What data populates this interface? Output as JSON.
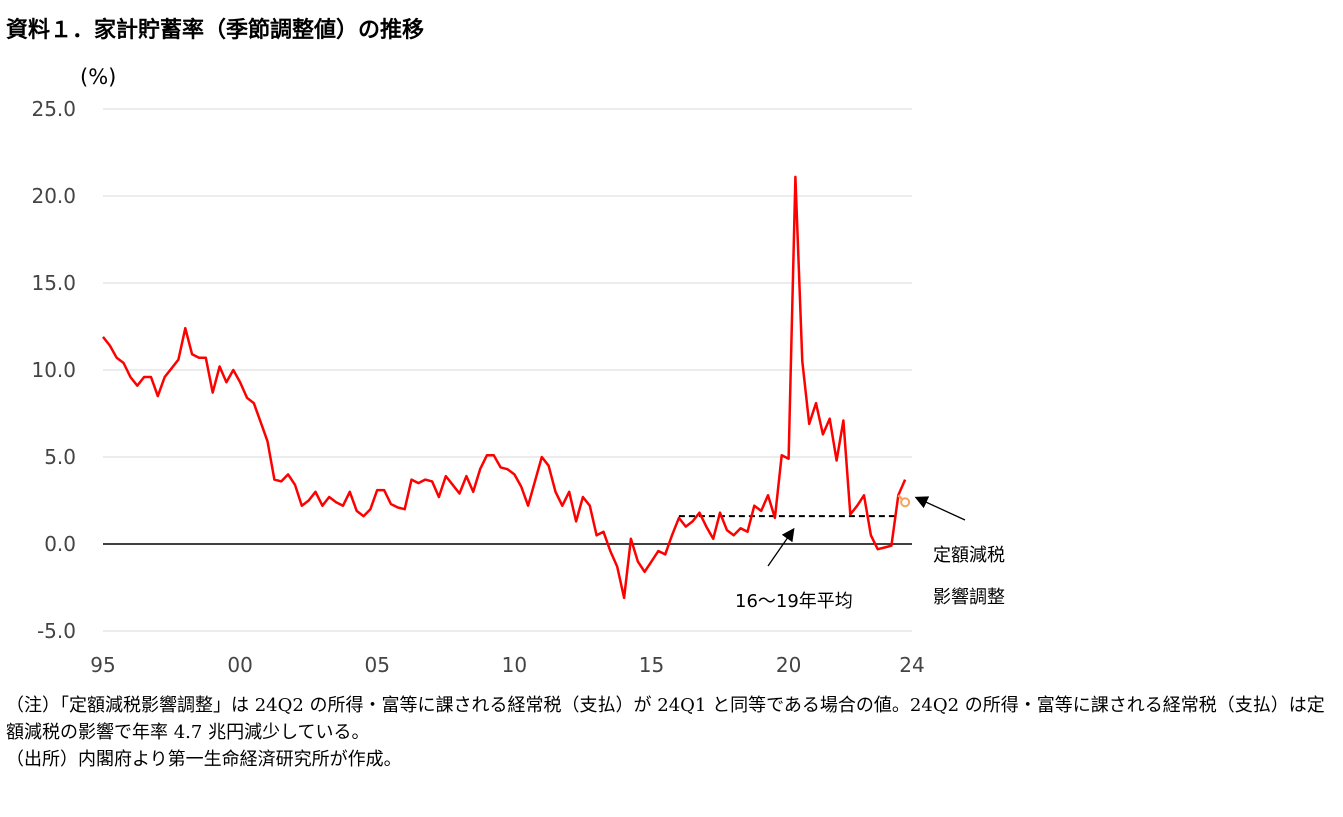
{
  "chart_data": {
    "type": "line",
    "title": "資料１．家計貯蓄率（季節調整値）の推移",
    "unit_label": "(%)",
    "ylim": [
      -5.0,
      25.0
    ],
    "yticks": [
      "25.0",
      "20.0",
      "15.0",
      "10.0",
      "5.0",
      "0.0",
      "-5.0"
    ],
    "yticks_values": [
      25,
      20,
      15,
      10,
      5,
      0,
      -5
    ],
    "xticks": [
      "95",
      "00",
      "05",
      "10",
      "15",
      "20",
      "24"
    ],
    "xticks_values": [
      1995,
      2000,
      2005,
      2010,
      2015,
      2020,
      2024.5
    ],
    "grid": true,
    "series": [
      {
        "color": "#ff0000",
        "points": [
          [
            1995.0,
            11.9
          ],
          [
            1995.25,
            11.4
          ],
          [
            1995.5,
            10.7
          ],
          [
            1995.75,
            10.4
          ],
          [
            1996.0,
            9.6
          ],
          [
            1996.25,
            9.1
          ],
          [
            1996.5,
            9.6
          ],
          [
            1996.75,
            9.6
          ],
          [
            1997.0,
            8.5
          ],
          [
            1997.25,
            9.6
          ],
          [
            1997.5,
            10.1
          ],
          [
            1997.75,
            10.6
          ],
          [
            1998.0,
            12.4
          ],
          [
            1998.25,
            10.9
          ],
          [
            1998.5,
            10.7
          ],
          [
            1998.75,
            10.7
          ],
          [
            1999.0,
            8.7
          ],
          [
            1999.25,
            10.2
          ],
          [
            1999.5,
            9.3
          ],
          [
            1999.75,
            10.0
          ],
          [
            2000.0,
            9.3
          ],
          [
            2000.25,
            8.4
          ],
          [
            2000.5,
            8.1
          ],
          [
            2000.75,
            7.0
          ],
          [
            2001.0,
            5.9
          ],
          [
            2001.25,
            3.7
          ],
          [
            2001.5,
            3.6
          ],
          [
            2001.75,
            4.0
          ],
          [
            2002.0,
            3.4
          ],
          [
            2002.25,
            2.2
          ],
          [
            2002.5,
            2.5
          ],
          [
            2002.75,
            3.0
          ],
          [
            2003.0,
            2.2
          ],
          [
            2003.25,
            2.7
          ],
          [
            2003.5,
            2.4
          ],
          [
            2003.75,
            2.2
          ],
          [
            2004.0,
            3.0
          ],
          [
            2004.25,
            1.9
          ],
          [
            2004.5,
            1.6
          ],
          [
            2004.75,
            2.0
          ],
          [
            2005.0,
            3.1
          ],
          [
            2005.25,
            3.1
          ],
          [
            2005.5,
            2.3
          ],
          [
            2005.75,
            2.1
          ],
          [
            2006.0,
            2.0
          ],
          [
            2006.25,
            3.7
          ],
          [
            2006.5,
            3.5
          ],
          [
            2006.75,
            3.7
          ],
          [
            2007.0,
            3.6
          ],
          [
            2007.25,
            2.7
          ],
          [
            2007.5,
            3.9
          ],
          [
            2007.75,
            3.4
          ],
          [
            2008.0,
            2.9
          ],
          [
            2008.25,
            3.9
          ],
          [
            2008.5,
            3.0
          ],
          [
            2008.75,
            4.3
          ],
          [
            2009.0,
            5.1
          ],
          [
            2009.25,
            5.1
          ],
          [
            2009.5,
            4.4
          ],
          [
            2009.75,
            4.3
          ],
          [
            2010.0,
            4.0
          ],
          [
            2010.25,
            3.3
          ],
          [
            2010.5,
            2.2
          ],
          [
            2010.75,
            3.6
          ],
          [
            2011.0,
            5.0
          ],
          [
            2011.25,
            4.5
          ],
          [
            2011.5,
            3.0
          ],
          [
            2011.75,
            2.2
          ],
          [
            2012.0,
            3.0
          ],
          [
            2012.25,
            1.3
          ],
          [
            2012.5,
            2.7
          ],
          [
            2012.75,
            2.2
          ],
          [
            2013.0,
            0.5
          ],
          [
            2013.25,
            0.7
          ],
          [
            2013.5,
            -0.4
          ],
          [
            2013.75,
            -1.3
          ],
          [
            2014.0,
            -3.1
          ],
          [
            2014.25,
            0.3
          ],
          [
            2014.5,
            -1.0
          ],
          [
            2014.75,
            -1.6
          ],
          [
            2015.0,
            -1.0
          ],
          [
            2015.25,
            -0.4
          ],
          [
            2015.5,
            -0.6
          ],
          [
            2015.75,
            0.5
          ],
          [
            2016.0,
            1.5
          ],
          [
            2016.25,
            1.0
          ],
          [
            2016.5,
            1.3
          ],
          [
            2016.75,
            1.8
          ],
          [
            2017.0,
            1.0
          ],
          [
            2017.25,
            0.3
          ],
          [
            2017.5,
            1.8
          ],
          [
            2017.75,
            0.8
          ],
          [
            2018.0,
            0.5
          ],
          [
            2018.25,
            0.9
          ],
          [
            2018.5,
            0.7
          ],
          [
            2018.75,
            2.2
          ],
          [
            2019.0,
            1.9
          ],
          [
            2019.25,
            2.8
          ],
          [
            2019.5,
            1.5
          ],
          [
            2019.75,
            5.1
          ],
          [
            2020.0,
            4.9
          ],
          [
            2020.25,
            21.1
          ],
          [
            2020.5,
            10.5
          ],
          [
            2020.75,
            6.9
          ],
          [
            2021.0,
            8.1
          ],
          [
            2021.25,
            6.3
          ],
          [
            2021.5,
            7.2
          ],
          [
            2021.75,
            4.8
          ],
          [
            2022.0,
            7.1
          ],
          [
            2022.25,
            1.7
          ],
          [
            2022.5,
            2.2
          ],
          [
            2022.75,
            2.8
          ],
          [
            2023.0,
            0.5
          ],
          [
            2023.25,
            -0.3
          ],
          [
            2023.5,
            -0.2
          ],
          [
            2023.75,
            -0.1
          ],
          [
            2024.0,
            2.8
          ],
          [
            2024.25,
            3.7
          ]
        ]
      },
      {
        "color": "#f4a460",
        "points": [
          [
            2024.0,
            2.8
          ],
          [
            2024.25,
            2.4
          ]
        ]
      }
    ],
    "average_line": {
      "x_from": 2016.0,
      "x_to": 2024.0,
      "value": 1.6
    },
    "annotations": [
      {
        "text": "16～19年平均"
      },
      {
        "text": "定額減税",
        "text2": "影響調整"
      }
    ]
  },
  "notes": [
    "（注）「定額減税影響調整」は 24Q2 の所得・富等に課される経常税（支払）が 24Q1 と同等である場合の値。24Q2 の所得・富等に課される経常税（支払）は定額減税の影響で年率 4.7 兆円減少している。",
    "（出所）内閣府より第一生命経済研究所が作成。"
  ]
}
